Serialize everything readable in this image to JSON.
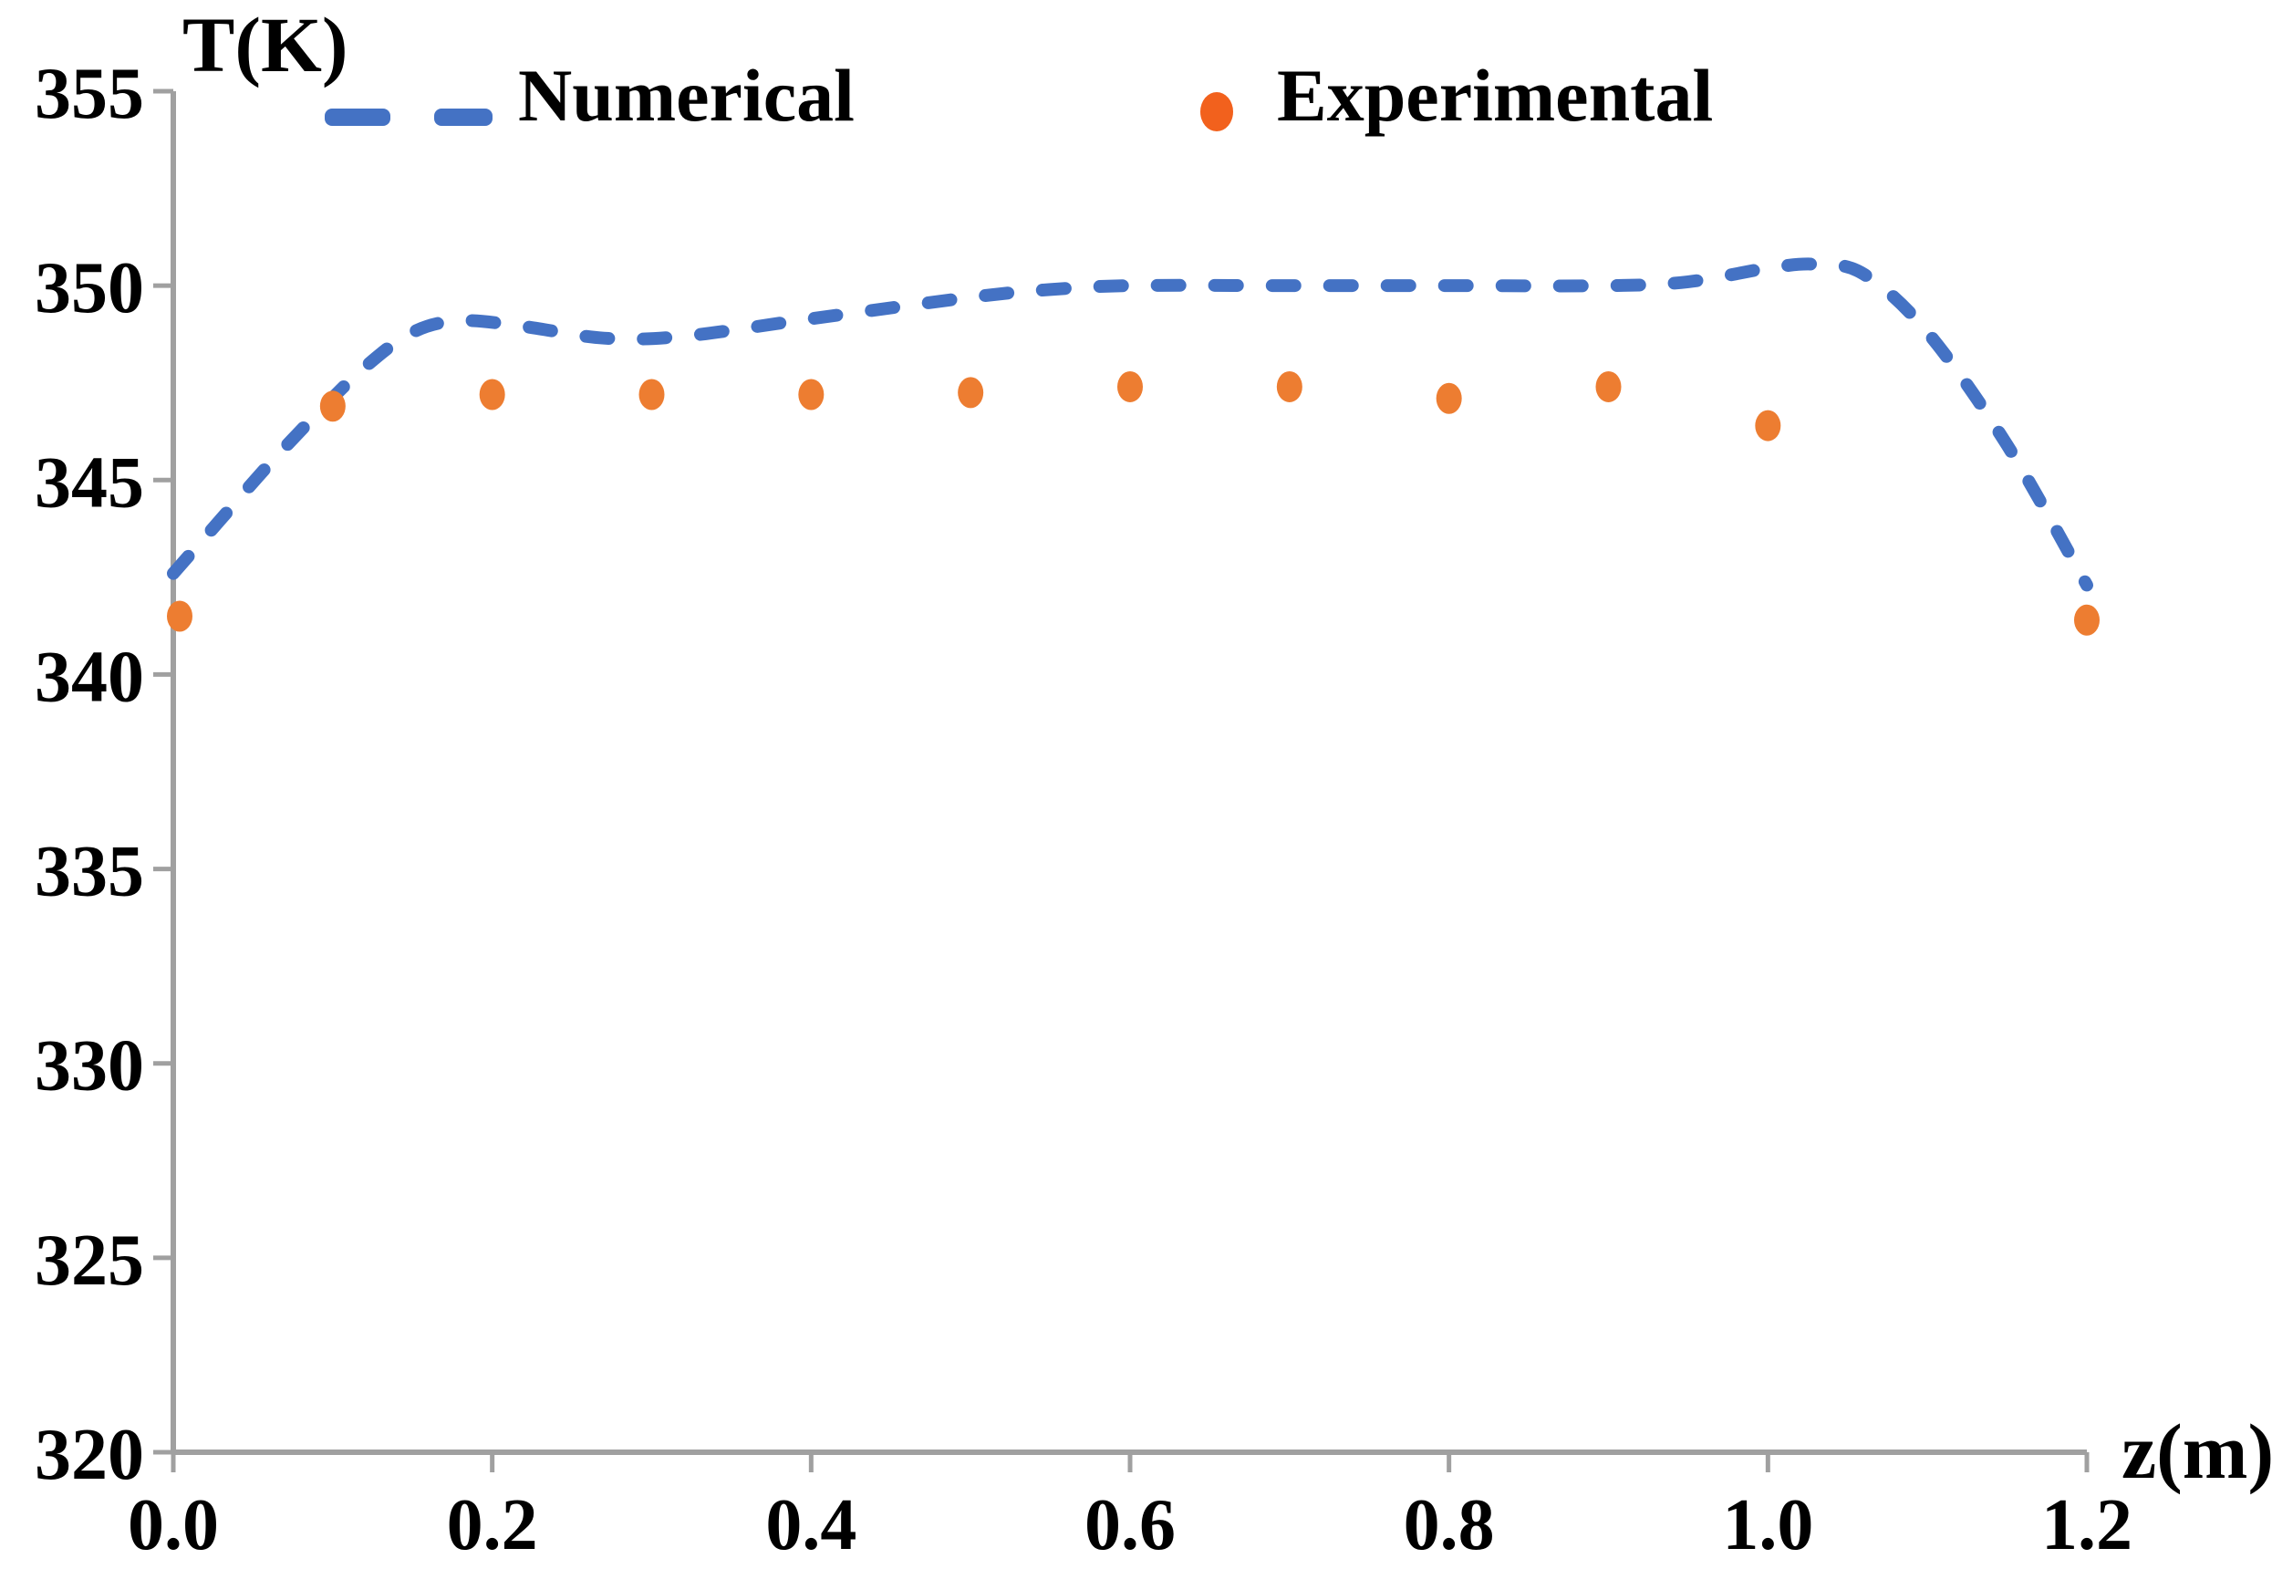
{
  "axes": {
    "x_title": "z(m)",
    "y_title": "T(K)"
  },
  "legend": {
    "numerical": "Numerical",
    "experimental": "Experimental"
  },
  "colors": {
    "numerical_line": "#4472C4",
    "experimental_point": "#ED7D31",
    "experimental_legend_marker": "#F2611D",
    "axis_line": "#A0A0A0",
    "text": "#000000",
    "background": "#FFFFFF"
  },
  "chart_data": {
    "type": "line",
    "title": "",
    "xlabel": "z(m)",
    "ylabel": "T(K)",
    "xlim": [
      0.0,
      1.2
    ],
    "ylim": [
      320,
      355
    ],
    "x_ticks": [
      "0.0",
      "0.2",
      "0.4",
      "0.6",
      "0.8",
      "1.0",
      "1.2"
    ],
    "y_ticks": [
      "320",
      "325",
      "330",
      "335",
      "340",
      "345",
      "350",
      "355"
    ],
    "grid": false,
    "legend_position": "top-inside",
    "series": [
      {
        "name": "Numerical",
        "style": "dashed-line",
        "color": "#4472C4",
        "x": [
          0.0,
          0.03,
          0.06,
          0.09,
          0.12,
          0.15,
          0.18,
          0.22,
          0.27,
          0.32,
          0.4,
          0.5,
          0.55,
          0.6,
          0.7,
          0.8,
          0.9,
          0.95,
          1.0,
          1.03,
          1.06,
          1.1,
          1.15,
          1.2
        ],
        "y": [
          342.6,
          344.0,
          345.4,
          346.7,
          347.9,
          348.8,
          349.1,
          348.95,
          348.65,
          348.7,
          349.15,
          349.7,
          349.9,
          350.0,
          350.0,
          350.0,
          350.0,
          350.1,
          350.45,
          350.55,
          350.3,
          348.8,
          345.9,
          342.3
        ]
      },
      {
        "name": "Experimental",
        "style": "scatter",
        "color": "#ED7D31",
        "x": [
          0.0,
          0.1,
          0.2,
          0.3,
          0.4,
          0.5,
          0.6,
          0.7,
          0.8,
          0.9,
          1.0,
          1.2
        ],
        "y": [
          341.5,
          346.9,
          347.2,
          347.2,
          347.2,
          347.25,
          347.4,
          347.4,
          347.1,
          347.4,
          346.4,
          341.4
        ]
      }
    ]
  }
}
